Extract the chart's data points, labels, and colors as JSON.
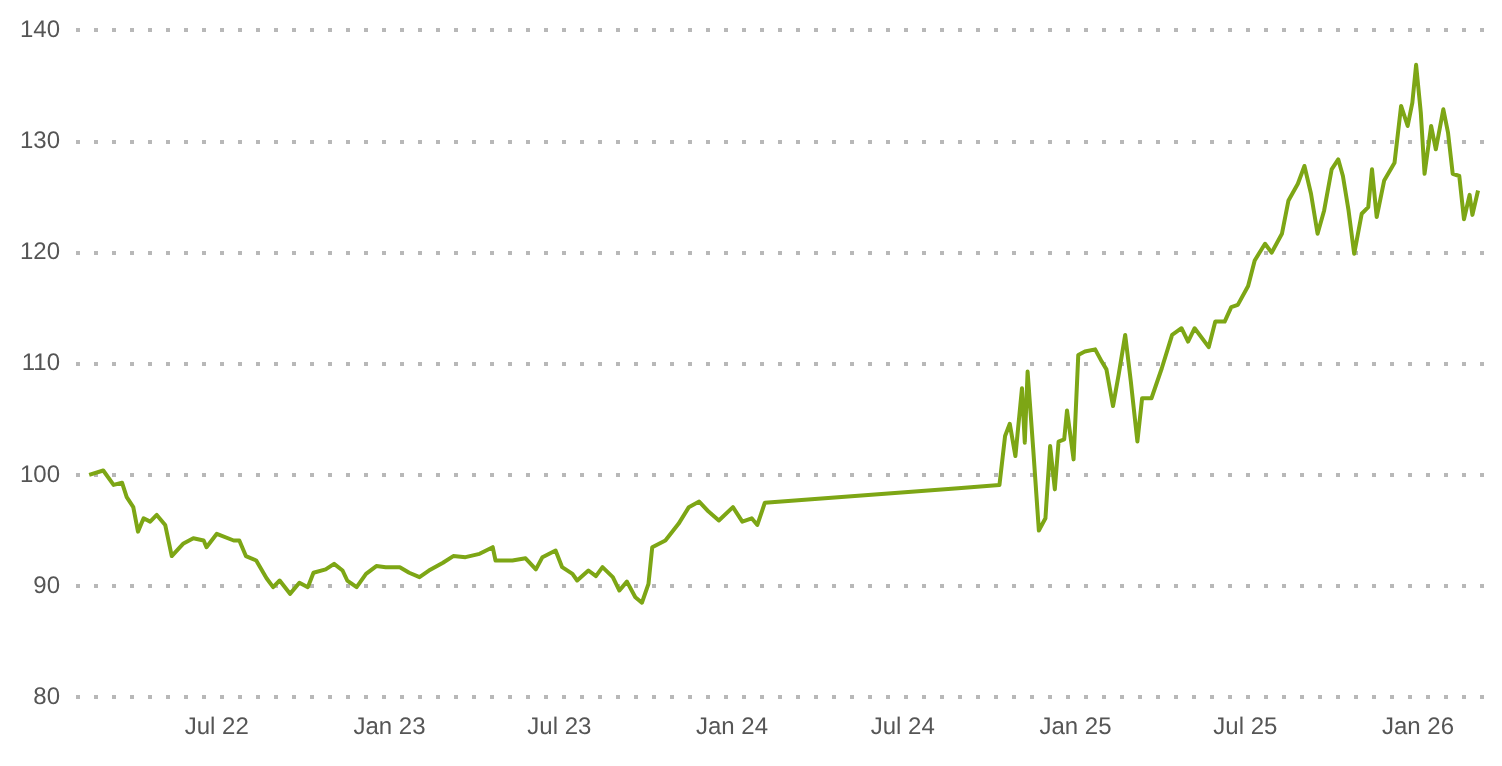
{
  "chart_data": {
    "type": "line",
    "color": "#7da615",
    "marker": "none",
    "grid": "y",
    "xlim": [
      "2022-02-01",
      "2026-03-23"
    ],
    "ylim": [
      80,
      140
    ],
    "xticks": [
      {
        "value": "2022-07-01",
        "label": "Jul 22"
      },
      {
        "value": "2023-01-01",
        "label": "Jan 23"
      },
      {
        "value": "2023-07-01",
        "label": "Jul 23"
      },
      {
        "value": "2024-01-01",
        "label": "Jan 24"
      },
      {
        "value": "2024-07-01",
        "label": "Jul 24"
      },
      {
        "value": "2025-01-01",
        "label": "Jan 25"
      },
      {
        "value": "2025-07-01",
        "label": "Jul 25"
      },
      {
        "value": "2026-01-01",
        "label": "Jan 26"
      }
    ],
    "yticks": [
      80,
      90,
      100,
      110,
      120,
      130,
      140
    ],
    "x": [
      "2022-02-15",
      "2022-03-02",
      "2022-03-13",
      "2022-03-22",
      "2022-03-27",
      "2022-04-03",
      "2022-04-08",
      "2022-04-14",
      "2022-04-21",
      "2022-04-28",
      "2022-05-07",
      "2022-05-14",
      "2022-05-26",
      "2022-06-06",
      "2022-06-17",
      "2022-06-20",
      "2022-07-01",
      "2022-07-19",
      "2022-07-25",
      "2022-08-01",
      "2022-08-12",
      "2022-08-23",
      "2022-08-30",
      "2022-09-06",
      "2022-09-17",
      "2022-09-27",
      "2022-10-06",
      "2022-10-12",
      "2022-10-25",
      "2022-11-03",
      "2022-11-12",
      "2022-11-17",
      "2022-11-27",
      "2022-12-07",
      "2022-12-18",
      "2022-12-28",
      "2023-01-12",
      "2023-01-22",
      "2023-02-02",
      "2023-02-12",
      "2023-02-27",
      "2023-03-10",
      "2023-03-23",
      "2023-04-07",
      "2023-04-21",
      "2023-04-24",
      "2023-05-12",
      "2023-05-26",
      "2023-06-06",
      "2023-06-13",
      "2023-06-27",
      "2023-07-04",
      "2023-07-15",
      "2023-07-20",
      "2023-08-01",
      "2023-08-09",
      "2023-08-16",
      "2023-08-27",
      "2023-09-03",
      "2023-09-11",
      "2023-09-20",
      "2023-09-27",
      "2023-10-04",
      "2023-10-08",
      "2023-10-22",
      "2023-11-05",
      "2023-11-16",
      "2023-11-27",
      "2023-12-07",
      "2023-12-18",
      "2024-01-02",
      "2024-01-12",
      "2024-01-22",
      "2024-01-28",
      "2024-02-05",
      "2024-08-29",
      "2024-10-12",
      "2024-10-18",
      "2024-10-23",
      "2024-10-29",
      "2024-11-05",
      "2024-11-08",
      "2024-11-11",
      "2024-11-17",
      "2024-11-23",
      "2024-11-30",
      "2024-12-05",
      "2024-12-10",
      "2024-12-14",
      "2024-12-20",
      "2024-12-23",
      "2024-12-30",
      "2025-01-04",
      "2025-01-11",
      "2025-01-22",
      "2025-01-29",
      "2025-02-03",
      "2025-02-10",
      "2025-02-16",
      "2025-02-23",
      "2025-03-01",
      "2025-03-08",
      "2025-03-13",
      "2025-03-23",
      "2025-04-03",
      "2025-04-14",
      "2025-04-24",
      "2025-05-01",
      "2025-05-08",
      "2025-05-23",
      "2025-05-30",
      "2025-06-09",
      "2025-06-16",
      "2025-06-23",
      "2025-07-04",
      "2025-07-11",
      "2025-07-22",
      "2025-07-29",
      "2025-08-09",
      "2025-08-16",
      "2025-08-26",
      "2025-09-02",
      "2025-09-09",
      "2025-09-16",
      "2025-09-23",
      "2025-10-01",
      "2025-10-08",
      "2025-10-13",
      "2025-10-19",
      "2025-10-25",
      "2025-11-02",
      "2025-11-09",
      "2025-11-13",
      "2025-11-18",
      "2025-11-26",
      "2025-12-07",
      "2025-12-14",
      "2025-12-21",
      "2025-12-26",
      "2025-12-30",
      "2026-01-04",
      "2026-01-08",
      "2026-01-15",
      "2026-01-20",
      "2026-01-28",
      "2026-02-02",
      "2026-02-07",
      "2026-02-14",
      "2026-02-19",
      "2026-02-25",
      "2026-02-28",
      "2026-03-06"
    ],
    "values": [
      100.0,
      100.4,
      99.1,
      99.3,
      98.0,
      97.1,
      94.9,
      96.1,
      95.8,
      96.4,
      95.5,
      92.7,
      93.8,
      94.3,
      94.1,
      93.5,
      94.7,
      94.1,
      94.1,
      92.7,
      92.3,
      90.7,
      89.9,
      90.5,
      89.3,
      90.3,
      89.9,
      91.2,
      91.5,
      92.0,
      91.4,
      90.5,
      89.9,
      91.1,
      91.8,
      91.7,
      91.7,
      91.2,
      90.8,
      91.4,
      92.1,
      92.7,
      92.6,
      92.9,
      93.5,
      92.3,
      92.3,
      92.5,
      91.5,
      92.6,
      93.2,
      91.7,
      91.1,
      90.5,
      91.4,
      90.9,
      91.7,
      90.8,
      89.6,
      90.4,
      89.0,
      88.5,
      90.2,
      93.5,
      94.1,
      95.6,
      97.1,
      97.6,
      96.7,
      95.9,
      97.1,
      95.8,
      96.1,
      95.5,
      97.5,
      98.8,
      99.1,
      103.5,
      104.6,
      101.7,
      107.8,
      102.9,
      109.3,
      102.3,
      95.0,
      96.1,
      102.6,
      98.7,
      103.0,
      103.2,
      105.8,
      101.4,
      110.8,
      111.1,
      111.3,
      110.2,
      109.5,
      106.2,
      109.0,
      112.6,
      108.4,
      103.0,
      106.9,
      106.9,
      109.6,
      112.6,
      113.2,
      112.0,
      113.2,
      111.5,
      113.8,
      113.8,
      115.1,
      115.3,
      117.0,
      119.3,
      120.8,
      120.0,
      121.7,
      124.7,
      126.2,
      127.8,
      125.3,
      121.7,
      123.8,
      127.5,
      128.4,
      126.9,
      123.8,
      119.9,
      123.5,
      124.1,
      127.5,
      123.2,
      126.5,
      128.1,
      133.2,
      131.4,
      133.5,
      136.9,
      132.6,
      127.1,
      131.4,
      129.3,
      132.9,
      130.8,
      127.1,
      126.9,
      123.0,
      125.2,
      123.4,
      125.6
    ]
  }
}
